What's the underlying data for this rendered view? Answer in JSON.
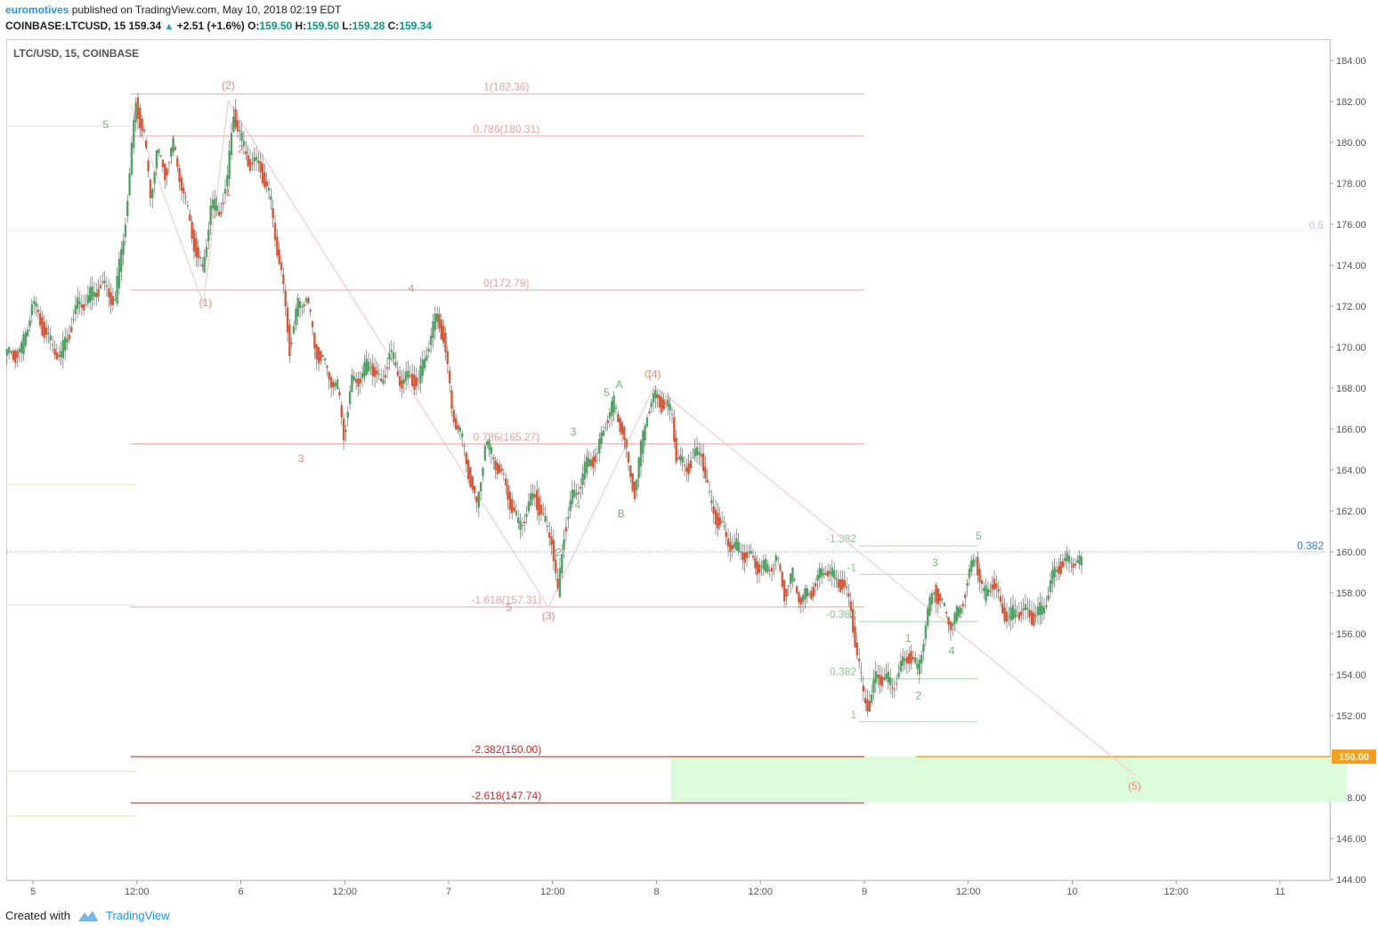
{
  "header": {
    "user": "euromotives",
    "published": "published on TradingView.com, May 10, 2018 02:19 EDT",
    "symbol": "COINBASE:LTCUSD, 15",
    "price": "159.34",
    "change": "+2.51 (+1.6%)",
    "o_label": "O:",
    "o": "159.50",
    "h_label": "H:",
    "h": "159.50",
    "l_label": "L:",
    "l": "159.28",
    "c_label": "C:",
    "c": "159.34",
    "up_icon": "triangle-up-icon"
  },
  "footer": {
    "created": "Created with",
    "brand": "TradingView",
    "logo_icon": "tradingview-logo-icon"
  },
  "colors": {
    "up": "#53a265",
    "down": "#d35b3b",
    "fib": "#e8a4a0",
    "fib_dark": "#b71c1c",
    "wave_red": "#e58c7c",
    "wave_green": "#76b576",
    "target": "#f2a020",
    "zone": "#dbfbdb",
    "last": "#3f7cd6"
  },
  "chart_data": {
    "type": "candlestick",
    "title": "LTC/USD, 15, COINBASE",
    "ylim": [
      144,
      184.6
    ],
    "y_ticks": [
      "184.00",
      "182.00",
      "180.00",
      "178.00",
      "176.00",
      "174.00",
      "172.00",
      "170.00",
      "168.00",
      "166.00",
      "164.00",
      "162.00",
      "160.00",
      "158.00",
      "156.00",
      "154.00",
      "152.00",
      "150.00",
      "148.00",
      "146.00",
      "144.00"
    ],
    "x_ticks": [
      {
        "label": "5",
        "day": 5.0
      },
      {
        "label": "12:00",
        "day": 5.5
      },
      {
        "label": "6",
        "day": 6.0
      },
      {
        "label": "12:00",
        "day": 6.5
      },
      {
        "label": "7",
        "day": 7.0
      },
      {
        "label": "12:00",
        "day": 7.5
      },
      {
        "label": "8",
        "day": 8.0
      },
      {
        "label": "12:00",
        "day": 8.5
      },
      {
        "label": "9",
        "day": 9.0
      },
      {
        "label": "12:00",
        "day": 9.5
      },
      {
        "label": "10",
        "day": 10.0
      },
      {
        "label": "12:00",
        "day": 10.5
      },
      {
        "label": "11",
        "day": 11.0
      }
    ],
    "price_path": [
      [
        4.87,
        169.5
      ],
      [
        4.95,
        169.8
      ],
      [
        5.0,
        172.2
      ],
      [
        5.08,
        170.3
      ],
      [
        5.14,
        169.6
      ],
      [
        5.22,
        172.0
      ],
      [
        5.28,
        172.5
      ],
      [
        5.33,
        173.0
      ],
      [
        5.4,
        172.3
      ],
      [
        5.44,
        175.5
      ],
      [
        5.47,
        178.3
      ],
      [
        5.5,
        182.0
      ],
      [
        5.54,
        180.2
      ],
      [
        5.57,
        177.5
      ],
      [
        5.6,
        179.5
      ],
      [
        5.64,
        178.5
      ],
      [
        5.68,
        179.8
      ],
      [
        5.71,
        178.5
      ],
      [
        5.75,
        176.5
      ],
      [
        5.8,
        174.2
      ],
      [
        5.82,
        173.6
      ],
      [
        5.86,
        177.0
      ],
      [
        5.9,
        176.6
      ],
      [
        5.94,
        178.0
      ],
      [
        5.97,
        181.6
      ],
      [
        6.0,
        180.3
      ],
      [
        6.05,
        179.0
      ],
      [
        6.1,
        178.8
      ],
      [
        6.15,
        177.0
      ],
      [
        6.2,
        173.5
      ],
      [
        6.24,
        170.0
      ],
      [
        6.28,
        172.0
      ],
      [
        6.32,
        172.6
      ],
      [
        6.36,
        170.0
      ],
      [
        6.42,
        168.8
      ],
      [
        6.47,
        168.0
      ],
      [
        6.5,
        165.8
      ],
      [
        6.54,
        168.2
      ],
      [
        6.58,
        168.6
      ],
      [
        6.63,
        169.3
      ],
      [
        6.68,
        168.0
      ],
      [
        6.72,
        169.8
      ],
      [
        6.78,
        168.3
      ],
      [
        6.82,
        168.5
      ],
      [
        6.86,
        168.2
      ],
      [
        6.9,
        170.0
      ],
      [
        6.95,
        171.5
      ],
      [
        6.98,
        170.5
      ],
      [
        7.02,
        167.0
      ],
      [
        7.06,
        165.8
      ],
      [
        7.1,
        164.0
      ],
      [
        7.14,
        162.0
      ],
      [
        7.18,
        165.4
      ],
      [
        7.24,
        164.2
      ],
      [
        7.3,
        162.5
      ],
      [
        7.34,
        161.3
      ],
      [
        7.38,
        162.0
      ],
      [
        7.42,
        162.8
      ],
      [
        7.46,
        161.5
      ],
      [
        7.5,
        160.8
      ],
      [
        7.53,
        157.8
      ],
      [
        7.56,
        161.0
      ],
      [
        7.6,
        162.6
      ],
      [
        7.64,
        163.5
      ],
      [
        7.68,
        164.5
      ],
      [
        7.72,
        164.6
      ],
      [
        7.76,
        166.5
      ],
      [
        7.8,
        167.2
      ],
      [
        7.84,
        166.0
      ],
      [
        7.87,
        164.0
      ],
      [
        7.9,
        163.0
      ],
      [
        7.93,
        165.0
      ],
      [
        7.96,
        167.0
      ],
      [
        8.0,
        167.5
      ],
      [
        8.04,
        167.2
      ],
      [
        8.08,
        166.8
      ],
      [
        8.1,
        164.8
      ],
      [
        8.14,
        164.0
      ],
      [
        8.18,
        164.5
      ],
      [
        8.22,
        165.0
      ],
      [
        8.26,
        162.5
      ],
      [
        8.3,
        161.5
      ],
      [
        8.34,
        160.6
      ],
      [
        8.38,
        160.3
      ],
      [
        8.42,
        160.0
      ],
      [
        8.48,
        159.4
      ],
      [
        8.52,
        159.2
      ],
      [
        8.58,
        159.6
      ],
      [
        8.62,
        158.0
      ],
      [
        8.66,
        158.8
      ],
      [
        8.7,
        157.7
      ],
      [
        8.74,
        157.9
      ],
      [
        8.78,
        158.6
      ],
      [
        8.82,
        159.3
      ],
      [
        8.86,
        158.7
      ],
      [
        8.9,
        158.4
      ],
      [
        8.94,
        157.2
      ],
      [
        8.97,
        155.0
      ],
      [
        9.0,
        153.0
      ],
      [
        9.03,
        152.5
      ],
      [
        9.06,
        153.8
      ],
      [
        9.1,
        153.9
      ],
      [
        9.14,
        153.5
      ],
      [
        9.18,
        154.3
      ],
      [
        9.22,
        155.0
      ],
      [
        9.26,
        154.2
      ],
      [
        9.3,
        156.5
      ],
      [
        9.34,
        158.2
      ],
      [
        9.38,
        157.3
      ],
      [
        9.42,
        156.6
      ],
      [
        9.46,
        157.0
      ],
      [
        9.5,
        158.5
      ],
      [
        9.54,
        159.8
      ],
      [
        9.58,
        157.8
      ],
      [
        9.62,
        158.6
      ],
      [
        9.66,
        157.3
      ],
      [
        9.7,
        156.8
      ],
      [
        9.74,
        157.2
      ],
      [
        9.78,
        157.0
      ],
      [
        9.82,
        156.8
      ],
      [
        9.86,
        157.2
      ],
      [
        9.9,
        158.5
      ],
      [
        9.94,
        159.3
      ],
      [
        9.98,
        159.5
      ],
      [
        10.02,
        159.7
      ],
      [
        10.05,
        159.34
      ]
    ],
    "fib_levels": [
      {
        "label": "1(182.36)",
        "price": 182.36,
        "dark": false
      },
      {
        "label": "0.786(180.31)",
        "price": 180.31,
        "dark": false
      },
      {
        "label": "0(172.79)",
        "price": 172.79,
        "dark": false
      },
      {
        "label": "0.786(165.27)",
        "price": 165.27,
        "dark": false
      },
      {
        "label": "-1.618(157.31)",
        "price": 157.31,
        "dark": false
      },
      {
        "label": "-2.382(150.00)",
        "price": 150.0,
        "dark": true
      },
      {
        "label": "-2.618(147.74)",
        "price": 147.74,
        "dark": true
      }
    ],
    "fib_start_day": 5.47,
    "fib_end_day": 9.0,
    "green_fib": [
      {
        "label": "-1.382",
        "price": 160.3
      },
      {
        "label": "-1",
        "price": 158.9
      },
      {
        "label": "-0.382",
        "price": 156.6
      },
      {
        "label": "0.382",
        "price": 153.8
      },
      {
        "label": "1",
        "price": 151.7
      }
    ],
    "wave_labels": [
      {
        "text": "(2)",
        "day": 5.94,
        "price": 182.6,
        "color": "red"
      },
      {
        "text": "(1)",
        "day": 5.83,
        "price": 172.0,
        "color": "red"
      },
      {
        "text": "(3)",
        "day": 7.48,
        "price": 156.7,
        "color": "red"
      },
      {
        "text": "(4)",
        "day": 7.99,
        "price": 168.5,
        "color": "red"
      },
      {
        "text": "(5)",
        "day": 10.3,
        "price": 148.4,
        "color": "red"
      },
      {
        "text": "5",
        "day": 5.35,
        "price": 180.7,
        "color": "green"
      },
      {
        "text": "1",
        "day": 5.94,
        "price": 177.4,
        "color": "red"
      },
      {
        "text": "2",
        "day": 6.0,
        "price": 179.5,
        "color": "red"
      },
      {
        "text": "3",
        "day": 6.29,
        "price": 164.4,
        "color": "red"
      },
      {
        "text": "4",
        "day": 6.82,
        "price": 172.7,
        "color": "red"
      },
      {
        "text": "5",
        "day": 7.29,
        "price": 157.1,
        "color": "red"
      },
      {
        "text": "2",
        "day": 7.53,
        "price": 159.8,
        "color": "green"
      },
      {
        "text": "3",
        "day": 7.6,
        "price": 165.7,
        "color": "green"
      },
      {
        "text": "4",
        "day": 7.62,
        "price": 162.1,
        "color": "green"
      },
      {
        "text": "5",
        "day": 7.76,
        "price": 167.6,
        "color": "green"
      },
      {
        "text": "A",
        "day": 7.82,
        "price": 168.0,
        "color": "green"
      },
      {
        "text": "B",
        "day": 7.83,
        "price": 161.7,
        "color": "green"
      },
      {
        "text": "C",
        "day": 7.96,
        "price": 168.5,
        "color": "orange"
      },
      {
        "text": "1",
        "day": 9.21,
        "price": 155.6,
        "color": "green"
      },
      {
        "text": "2",
        "day": 9.26,
        "price": 152.8,
        "color": "green"
      },
      {
        "text": "3",
        "day": 9.34,
        "price": 159.3,
        "color": "green"
      },
      {
        "text": "4",
        "day": 9.42,
        "price": 155.0,
        "color": "green"
      },
      {
        "text": "5",
        "day": 9.55,
        "price": 160.6,
        "color": "green"
      }
    ],
    "wave_path": [
      [
        5.47,
        181.9
      ],
      [
        5.82,
        172.1
      ],
      [
        5.94,
        182.0
      ],
      [
        7.48,
        157.3
      ],
      [
        7.99,
        168.1
      ],
      [
        10.3,
        149.1
      ]
    ],
    "target_zone": {
      "from_day": 8.07,
      "to_day": 11.32,
      "top": 150.0,
      "bottom": 147.8
    },
    "target_price": "150.00",
    "target_line_start_day": 9.25,
    "half_level": {
      "label": "0.5",
      "price": 175.7
    },
    "last_level": {
      "label": "0.382",
      "price": 160.0
    },
    "left_levels": [
      180.8,
      163.3,
      157.4,
      149.3,
      147.1
    ]
  }
}
